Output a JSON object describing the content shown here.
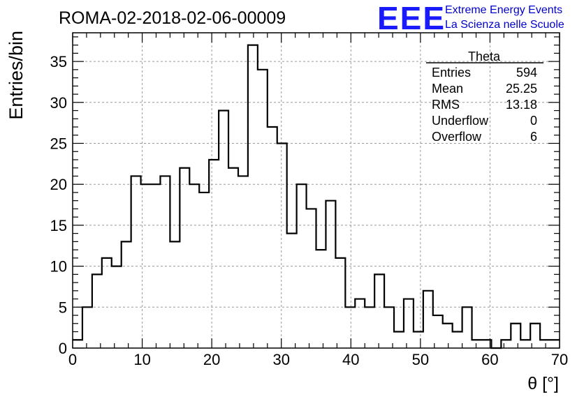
{
  "title": "ROMA-02-2018-02-06-00009",
  "logo": {
    "acronym": "EEE",
    "line1": "Extreme Energy Events",
    "line2": "La Scienza nelle Scuole",
    "color": "#1a1aff"
  },
  "stats": {
    "name": "Theta",
    "rows": [
      {
        "label": "Entries",
        "value": "594"
      },
      {
        "label": "Mean",
        "value": "25.25"
      },
      {
        "label": "RMS",
        "value": "13.18"
      },
      {
        "label": "Underflow",
        "value": "0"
      },
      {
        "label": "Overflow",
        "value": "6"
      }
    ]
  },
  "chart_data": {
    "type": "histogram",
    "title": "ROMA-02-2018-02-06-00009",
    "xlabel": "θ [°]",
    "ylabel": "Entries/bin",
    "xlim": [
      0,
      70
    ],
    "ylim": [
      0,
      38.5
    ],
    "bin_width": 1.4,
    "x_ticks": [
      0,
      10,
      20,
      30,
      40,
      50,
      60,
      70
    ],
    "y_ticks": [
      0,
      5,
      10,
      15,
      20,
      25,
      30,
      35
    ],
    "grid": true,
    "values": [
      1,
      5,
      9,
      11,
      10,
      13,
      21,
      20,
      20,
      21,
      13,
      22,
      20,
      19,
      23,
      29,
      22,
      21,
      37,
      34,
      27,
      25,
      14,
      20,
      17,
      12,
      18,
      11,
      5,
      6,
      5,
      9,
      5,
      2,
      6,
      2,
      7,
      4,
      3,
      2,
      5,
      1,
      1,
      0,
      1,
      3,
      1,
      3,
      1,
      1
    ]
  }
}
